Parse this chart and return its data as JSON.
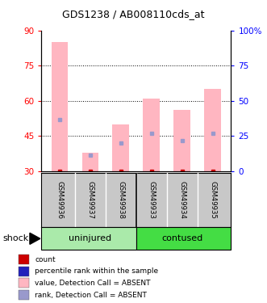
{
  "title": "GDS1238 / AB008110cds_at",
  "samples": [
    "GSM49936",
    "GSM49937",
    "GSM49938",
    "GSM49933",
    "GSM49934",
    "GSM49935"
  ],
  "groups": [
    "uninjured",
    "uninjured",
    "uninjured",
    "contused",
    "contused",
    "contused"
  ],
  "group_labels": [
    "uninjured",
    "contused"
  ],
  "group_colors": [
    "#90EE90",
    "#3CB371"
  ],
  "pink_bar_top": [
    85,
    38,
    50,
    61,
    56,
    65
  ],
  "pink_bar_bottom": [
    30,
    30,
    30,
    30,
    30,
    30
  ],
  "blue_dot_value": [
    52,
    37,
    42,
    46,
    43,
    46
  ],
  "red_dot_value": [
    30,
    30,
    30,
    30,
    30,
    30
  ],
  "ylim_left": [
    30,
    90
  ],
  "ylim_right": [
    0,
    100
  ],
  "yticks_left": [
    30,
    45,
    60,
    75,
    90
  ],
  "yticks_right": [
    0,
    25,
    50,
    75,
    100
  ],
  "ytick_labels_right": [
    "0",
    "25",
    "50",
    "75",
    "100%"
  ],
  "bar_color": "#FFB6C1",
  "blue_color": "#9999CC",
  "red_color": "#CC0000",
  "dark_blue_color": "#2222BB",
  "legend_colors": [
    "#CC0000",
    "#2222BB",
    "#FFB6C1",
    "#9999CC"
  ],
  "legend_labels": [
    "count",
    "percentile rank within the sample",
    "value, Detection Call = ABSENT",
    "rank, Detection Call = ABSENT"
  ],
  "shock_label": "shock",
  "background_color": "#FFFFFF",
  "bar_width": 0.55
}
